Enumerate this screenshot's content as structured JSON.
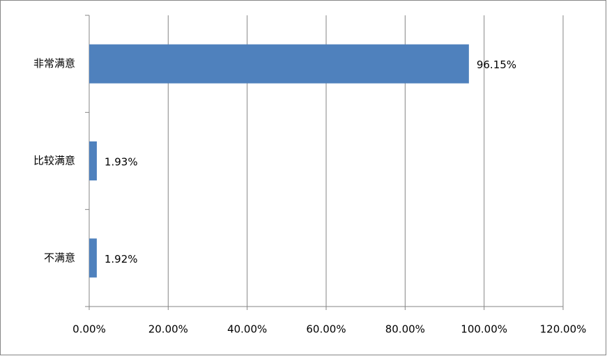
{
  "chart_data": {
    "type": "barh",
    "categories": [
      "非常满意",
      "比较满意",
      "不满意"
    ],
    "values": [
      96.15,
      1.93,
      1.92
    ],
    "value_labels": [
      "96.15%",
      "1.93%",
      "1.92%"
    ],
    "color": "#4f81bd",
    "xlim": [
      0,
      120
    ],
    "xticks": [
      {
        "value": 0,
        "label": "0.00%"
      },
      {
        "value": 20,
        "label": "20.00%"
      },
      {
        "value": 40,
        "label": "40.00%"
      },
      {
        "value": 60,
        "label": "60.00%"
      },
      {
        "value": 80,
        "label": "80.00%"
      },
      {
        "value": 100,
        "label": "100.00%"
      },
      {
        "value": 120,
        "label": "120.00%"
      }
    ],
    "grid": true
  }
}
